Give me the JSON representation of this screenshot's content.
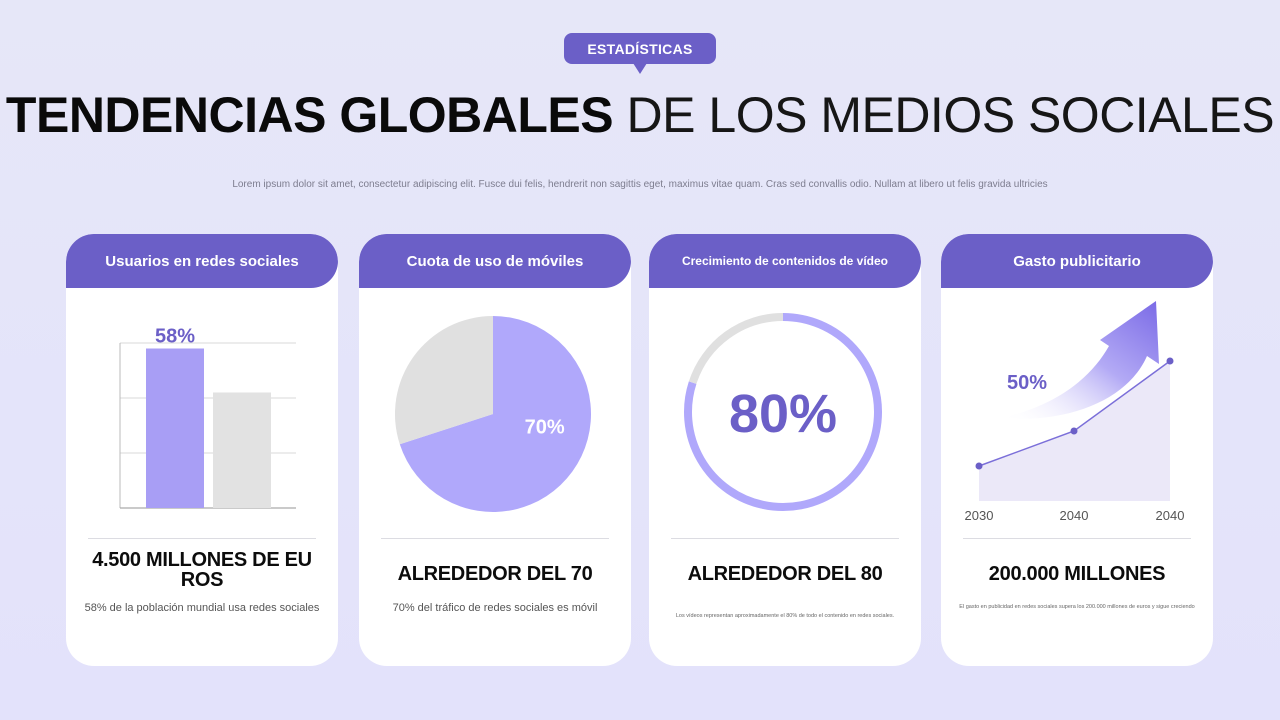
{
  "header": {
    "badge": "ESTADÍSTICAS",
    "title_bold": "TENDENCIAS GLOBALES",
    "title_light": "DE LOS MEDIOS SOCIALES",
    "subtitle": "Lorem ipsum dolor sit amet, consectetur adipiscing elit. Fusce dui felis, hendrerit non sagittis eget, maximus vitae quam. Cras sed convallis odio. Nullam at libero ut felis gravida ultricies"
  },
  "colors": {
    "accent": "#6b5fc7",
    "bar_primary": "#a89ef5",
    "bar_secondary": "#e2e2e2",
    "pie_primary": "#b0a8fb",
    "pie_secondary": "#e0e0e0"
  },
  "cards": [
    {
      "title": "Usuarios en redes sociales",
      "stat": "4.500 MILLONES DE EU ROS",
      "description": "58% de la población mundial usa redes sociales"
    },
    {
      "title": "Cuota de uso de móviles",
      "stat": "ALREDEDOR DEL 70",
      "description": "70% del tráfico de redes sociales es móvil"
    },
    {
      "title": "Crecimiento de contenidos de vídeo",
      "stat": "ALREDEDOR DEL 80",
      "description": "Los vídeos representan aproximadamente el 80% de todo el contenido en redes sociales."
    },
    {
      "title": "Gasto publicitario",
      "stat": "200.000 MILLONES",
      "description": "El gasto en publicidad en redes sociales supera los 200.000 millones de euros y sigue creciendo"
    }
  ],
  "chart_data": [
    {
      "type": "bar",
      "categories": [
        "",
        ""
      ],
      "values": [
        58,
        42
      ],
      "data_labels": [
        "58%",
        ""
      ],
      "ylim": [
        0,
        60
      ],
      "grid": true,
      "colors": [
        "#a89ef5",
        "#e2e2e2"
      ]
    },
    {
      "type": "pie",
      "slices": [
        {
          "value": 70,
          "label": "70%",
          "color": "#b0a8fb"
        },
        {
          "value": 30,
          "label": "",
          "color": "#e0e0e0"
        }
      ]
    },
    {
      "type": "pie",
      "style": "donut",
      "slices": [
        {
          "value": 80,
          "color": "#b0a8fb"
        },
        {
          "value": 20,
          "color": "#e0e0e0"
        }
      ],
      "center_label": "80%"
    },
    {
      "type": "area",
      "x": [
        "2030",
        "2040",
        "2040"
      ],
      "values": [
        1,
        2,
        4
      ],
      "annotation": "50%",
      "colors": [
        "#7b6fd9",
        "#ebe8f8"
      ]
    }
  ]
}
